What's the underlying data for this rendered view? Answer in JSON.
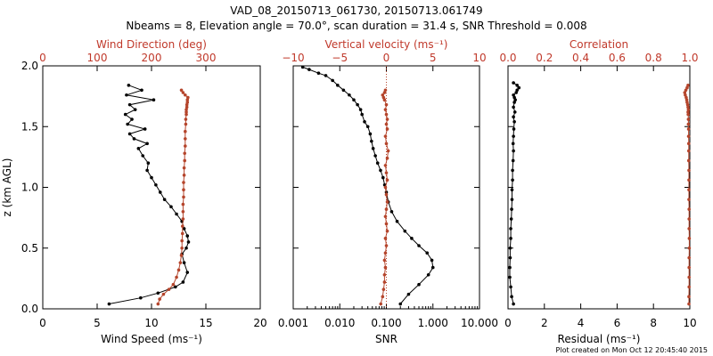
{
  "title_line1": "VAD_08_20150713_061730, 20150713.061749",
  "title_line2": "Nbeams = 8, Elevation angle = 70.0°, scan duration = 31.4 s, SNR Threshold = 0.008",
  "footer": "Plot created on Mon Oct 12 20:45:40 2015",
  "colors": {
    "black_series": "#000000",
    "red_series": "#b5452c",
    "red_text": "#c0392b"
  },
  "chart_data": [
    {
      "type": "line",
      "panel": "left",
      "ylabel": "z (km AGL)",
      "ylim": [
        0.0,
        2.0
      ],
      "yticks": [
        "0.0",
        "0.5",
        "1.0",
        "1.5",
        "2.0"
      ],
      "bottom_axis": {
        "label": "Wind Speed (ms⁻¹)",
        "range": [
          0,
          20
        ],
        "ticks": [
          "0",
          "5",
          "10",
          "15",
          "20"
        ]
      },
      "top_axis": {
        "label": "Wind Direction (deg)",
        "range": [
          0,
          400
        ],
        "ticks": [
          "0",
          "100",
          "200",
          "300"
        ]
      },
      "series": [
        {
          "axis": "bottom",
          "x": [
            6.1,
            9.0,
            10.6,
            12.2,
            12.9,
            13.3,
            13.0,
            12.8,
            13.2,
            13.4,
            13.3,
            13.0,
            12.8,
            12.3,
            11.8,
            11.2,
            10.8,
            10.4,
            10.0,
            9.6,
            9.7,
            9.2,
            8.8,
            9.6,
            8.4,
            8.0,
            9.4,
            7.8,
            8.2,
            7.6,
            8.5,
            8.0,
            10.2,
            7.7,
            9.1,
            7.9
          ],
          "y": [
            0.04,
            0.09,
            0.13,
            0.18,
            0.22,
            0.3,
            0.38,
            0.45,
            0.5,
            0.55,
            0.6,
            0.66,
            0.72,
            0.78,
            0.84,
            0.9,
            0.96,
            1.02,
            1.08,
            1.14,
            1.2,
            1.26,
            1.32,
            1.36,
            1.4,
            1.44,
            1.48,
            1.52,
            1.56,
            1.6,
            1.64,
            1.68,
            1.72,
            1.76,
            1.8,
            1.84
          ]
        },
        {
          "axis": "top",
          "x": [
            212,
            215,
            222,
            232,
            240,
            246,
            250,
            253,
            255,
            256,
            256,
            257,
            257,
            258,
            258,
            258,
            259,
            259,
            259,
            260,
            260,
            261,
            261,
            262,
            262,
            262,
            263,
            263,
            264,
            264,
            264,
            265,
            265,
            266,
            266,
            267,
            262,
            258,
            255
          ],
          "y": [
            0.04,
            0.08,
            0.12,
            0.16,
            0.2,
            0.26,
            0.32,
            0.38,
            0.44,
            0.5,
            0.56,
            0.62,
            0.68,
            0.74,
            0.8,
            0.86,
            0.92,
            0.98,
            1.04,
            1.1,
            1.16,
            1.22,
            1.28,
            1.34,
            1.4,
            1.46,
            1.52,
            1.56,
            1.6,
            1.62,
            1.64,
            1.66,
            1.68,
            1.7,
            1.72,
            1.74,
            1.76,
            1.78,
            1.8
          ]
        }
      ]
    },
    {
      "type": "line",
      "panel": "middle",
      "ylim": [
        0.0,
        2.0
      ],
      "bottom_axis": {
        "label": "SNR",
        "scale": "log",
        "range": [
          0.001,
          10.0
        ],
        "ticks": [
          "0.001",
          "0.010",
          "0.100",
          "1.000",
          "10.000"
        ]
      },
      "top_axis": {
        "label": "Vertical velocity (ms⁻¹)",
        "range": [
          -10,
          10
        ],
        "ticks": [
          "−10",
          "−5",
          "0",
          "5",
          "10"
        ]
      },
      "zero_reference_line": 0,
      "series": [
        {
          "axis": "bottom",
          "x": [
            0.2,
            0.3,
            0.5,
            0.8,
            1.0,
            0.95,
            0.75,
            0.5,
            0.35,
            0.25,
            0.17,
            0.13,
            0.11,
            0.1,
            0.092,
            0.085,
            0.075,
            0.065,
            0.058,
            0.052,
            0.048,
            0.045,
            0.04,
            0.034,
            0.03,
            0.028,
            0.024,
            0.02,
            0.016,
            0.012,
            0.009,
            0.007,
            0.005,
            0.0035,
            0.0022,
            0.0016
          ],
          "y": [
            0.04,
            0.12,
            0.2,
            0.28,
            0.34,
            0.4,
            0.46,
            0.52,
            0.58,
            0.64,
            0.72,
            0.8,
            0.88,
            0.96,
            1.02,
            1.08,
            1.14,
            1.2,
            1.26,
            1.32,
            1.38,
            1.44,
            1.5,
            1.54,
            1.6,
            1.64,
            1.68,
            1.72,
            1.76,
            1.8,
            1.84,
            1.88,
            1.92,
            1.94,
            1.97,
            1.99
          ]
        },
        {
          "axis": "top",
          "x": [
            -0.6,
            -0.4,
            -0.3,
            -0.2,
            -0.2,
            -0.1,
            -0.2,
            -0.1,
            0.0,
            -0.1,
            0.1,
            0.0,
            -0.1,
            0.0,
            0.1,
            0.0,
            -0.1,
            0.1,
            0.0,
            -0.1,
            0.1,
            0.2,
            0.0,
            -0.1,
            0.1,
            0.0,
            0.1,
            0.0,
            -0.1,
            0.0,
            -0.2,
            -0.3,
            -0.4,
            -0.2,
            -0.1
          ],
          "y": [
            0.04,
            0.1,
            0.16,
            0.22,
            0.28,
            0.34,
            0.4,
            0.46,
            0.52,
            0.58,
            0.64,
            0.7,
            0.76,
            0.82,
            0.88,
            0.94,
            1.0,
            1.06,
            1.12,
            1.18,
            1.24,
            1.3,
            1.36,
            1.42,
            1.48,
            1.52,
            1.56,
            1.6,
            1.64,
            1.68,
            1.72,
            1.74,
            1.76,
            1.78,
            1.8
          ]
        }
      ]
    },
    {
      "type": "line",
      "panel": "right",
      "ylim": [
        0.0,
        2.0
      ],
      "bottom_axis": {
        "label": "Residual (ms⁻¹)",
        "range": [
          0,
          10
        ],
        "ticks": [
          "0",
          "2",
          "4",
          "6",
          "8",
          "10"
        ]
      },
      "top_axis": {
        "label": "Correlation",
        "range": [
          0.0,
          1.0
        ],
        "ticks": [
          "0.0",
          "0.2",
          "0.4",
          "0.6",
          "0.8",
          "1.0"
        ]
      },
      "series": [
        {
          "axis": "bottom",
          "x": [
            0.3,
            0.2,
            0.15,
            0.1,
            0.1,
            0.12,
            0.12,
            0.15,
            0.15,
            0.18,
            0.2,
            0.22,
            0.22,
            0.25,
            0.25,
            0.28,
            0.3,
            0.28,
            0.3,
            0.32,
            0.35,
            0.3,
            0.38,
            0.3,
            0.35,
            0.4,
            0.35,
            0.3,
            0.45,
            0.5,
            0.6,
            0.5,
            0.3
          ],
          "y": [
            0.04,
            0.1,
            0.18,
            0.26,
            0.34,
            0.42,
            0.5,
            0.58,
            0.66,
            0.74,
            0.82,
            0.9,
            0.98,
            1.06,
            1.14,
            1.22,
            1.3,
            1.36,
            1.42,
            1.48,
            1.54,
            1.58,
            1.62,
            1.66,
            1.7,
            1.72,
            1.74,
            1.76,
            1.78,
            1.8,
            1.82,
            1.84,
            1.86
          ]
        },
        {
          "axis": "top",
          "x": [
            0.995,
            0.995,
            0.996,
            0.996,
            0.996,
            0.996,
            0.997,
            0.997,
            0.996,
            0.996,
            0.996,
            0.995,
            0.995,
            0.995,
            0.995,
            0.994,
            0.994,
            0.994,
            0.993,
            0.993,
            0.992,
            0.992,
            0.991,
            0.99,
            0.992,
            0.99,
            0.988,
            0.985,
            0.983,
            0.98,
            0.975,
            0.972,
            0.978,
            0.985,
            0.99
          ],
          "y": [
            0.04,
            0.1,
            0.18,
            0.26,
            0.34,
            0.42,
            0.5,
            0.58,
            0.66,
            0.74,
            0.82,
            0.9,
            0.98,
            1.06,
            1.14,
            1.22,
            1.3,
            1.36,
            1.42,
            1.48,
            1.52,
            1.56,
            1.6,
            1.62,
            1.64,
            1.66,
            1.68,
            1.7,
            1.72,
            1.74,
            1.76,
            1.78,
            1.8,
            1.82,
            1.84
          ]
        }
      ]
    }
  ]
}
